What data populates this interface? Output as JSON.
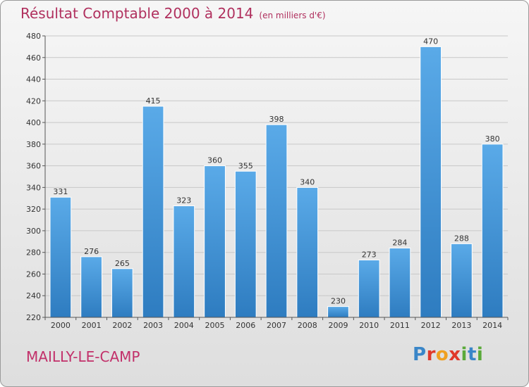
{
  "chart_data": {
    "type": "bar",
    "title": "Résultat Comptable 2000 à 2014",
    "subtitle": "(en milliers d'€)",
    "categories": [
      "2000",
      "2001",
      "2002",
      "2003",
      "2004",
      "2005",
      "2006",
      "2007",
      "2008",
      "2009",
      "2010",
      "2011",
      "2012",
      "2013",
      "2014"
    ],
    "values": [
      331,
      276,
      265,
      415,
      323,
      360,
      355,
      398,
      340,
      230,
      273,
      284,
      470,
      288,
      380
    ],
    "ylim": [
      220,
      480
    ],
    "yticks": [
      220,
      240,
      260,
      280,
      300,
      320,
      340,
      360,
      380,
      400,
      420,
      440,
      460,
      480
    ],
    "grid": true,
    "bar_color_top": "#5aaae8",
    "bar_color_bottom": "#2e7cc0"
  },
  "footer": {
    "town": "MAILLY-LE-CAMP",
    "logo": "Proxiti"
  }
}
